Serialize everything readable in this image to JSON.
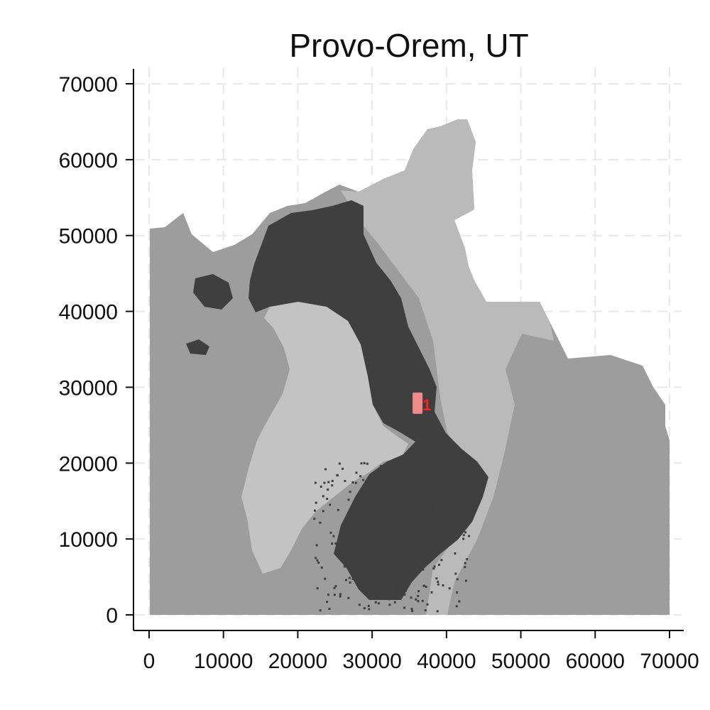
{
  "map": {
    "title": "Provo-Orem, UT",
    "x_axis": {
      "range": [
        0,
        70000
      ],
      "ticks": [
        0,
        10000,
        20000,
        30000,
        40000,
        50000,
        60000,
        70000
      ]
    },
    "y_axis": {
      "range": [
        0,
        70000
      ],
      "ticks": [
        0,
        10000,
        20000,
        30000,
        40000,
        50000,
        60000,
        70000
      ]
    },
    "grid": true,
    "colors": {
      "region_base": "#9d9d9d",
      "mountain_highlands": "#bababa",
      "lake": "#c3c3c3",
      "urban": "#3f3f3f",
      "marker_fill": "#f08a8a",
      "marker_text": "#ff1f1f"
    },
    "marker": {
      "label": "1",
      "x": 36300,
      "y": 27800
    }
  }
}
